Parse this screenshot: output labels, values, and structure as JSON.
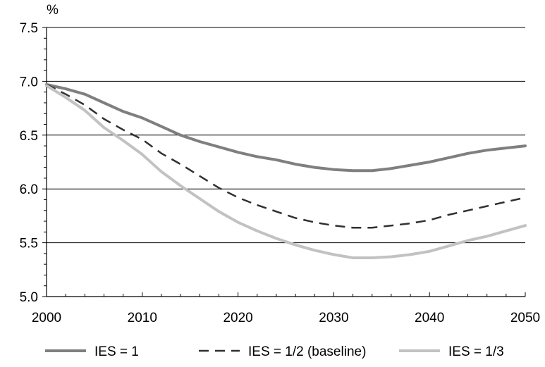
{
  "chart_data": {
    "type": "line",
    "ylabel": "%",
    "ylim": [
      5.0,
      7.5
    ],
    "xlim": [
      2000,
      2050
    ],
    "yticks": [
      "5.0",
      "5.5",
      "6.0",
      "6.5",
      "7.0",
      "7.5"
    ],
    "xticks": [
      "2000",
      "2010",
      "2020",
      "2030",
      "2040",
      "2050"
    ],
    "grid": "horizontal",
    "legend": "bottom",
    "x": [
      2000,
      2002,
      2004,
      2006,
      2008,
      2010,
      2012,
      2014,
      2016,
      2018,
      2020,
      2022,
      2024,
      2026,
      2028,
      2030,
      2032,
      2034,
      2036,
      2038,
      2040,
      2042,
      2044,
      2046,
      2048,
      2050
    ],
    "series": [
      {
        "name": "IES = 1",
        "color": "#7f7f7f",
        "dash": "solid",
        "values": [
          6.97,
          6.93,
          6.88,
          6.8,
          6.72,
          6.66,
          6.58,
          6.5,
          6.44,
          6.39,
          6.34,
          6.3,
          6.27,
          6.23,
          6.2,
          6.18,
          6.17,
          6.17,
          6.19,
          6.22,
          6.25,
          6.29,
          6.33,
          6.36,
          6.38,
          6.4
        ]
      },
      {
        "name": "IES = 1/2 (baseline)",
        "color": "#303030",
        "dash": "dashed",
        "values": [
          6.97,
          6.88,
          6.78,
          6.65,
          6.55,
          6.46,
          6.33,
          6.23,
          6.12,
          6.01,
          5.92,
          5.85,
          5.79,
          5.73,
          5.69,
          5.66,
          5.64,
          5.64,
          5.66,
          5.68,
          5.71,
          5.76,
          5.8,
          5.84,
          5.88,
          5.92
        ]
      },
      {
        "name": "IES = 1/3",
        "color": "#c2c2c2",
        "dash": "solid",
        "values": [
          6.96,
          6.85,
          6.73,
          6.57,
          6.45,
          6.32,
          6.16,
          6.03,
          5.91,
          5.79,
          5.69,
          5.61,
          5.54,
          5.48,
          5.43,
          5.39,
          5.36,
          5.36,
          5.37,
          5.39,
          5.42,
          5.47,
          5.52,
          5.56,
          5.61,
          5.66
        ]
      }
    ]
  }
}
